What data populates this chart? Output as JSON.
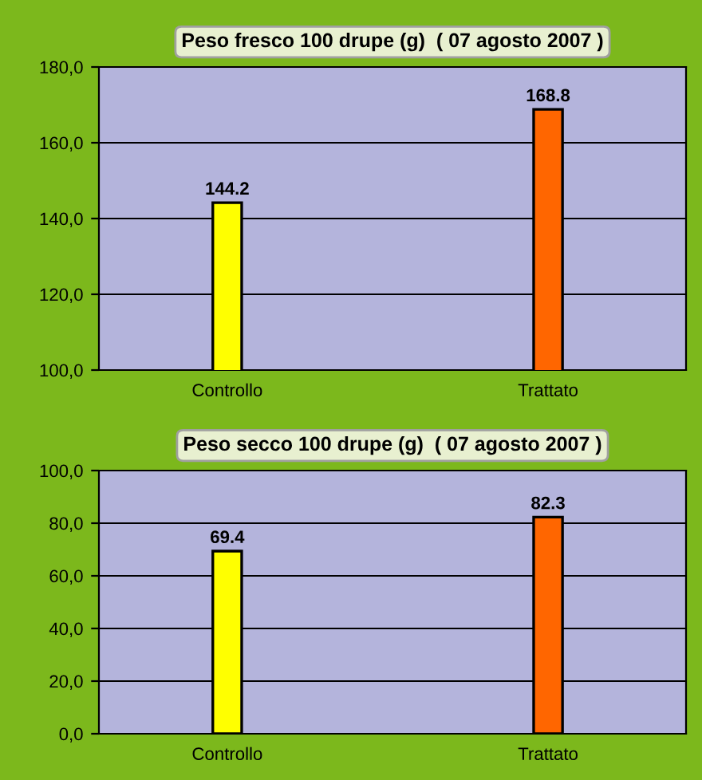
{
  "chart_data": [
    {
      "type": "bar",
      "title": "Peso fresco 100 drupe (g)  ( 07 agosto 2007 )",
      "categories": [
        "Controllo",
        "Trattato"
      ],
      "values": [
        144.2,
        168.8
      ],
      "colors": [
        "#ffff00",
        "#ff6600"
      ],
      "value_labels": [
        "144.2",
        "168.8"
      ],
      "ylim": [
        100,
        180
      ],
      "yticks": [
        {
          "value": 100,
          "label": "100,0"
        },
        {
          "value": 120,
          "label": "120,0"
        },
        {
          "value": 140,
          "label": "140,0"
        },
        {
          "value": 160,
          "label": "160,0"
        },
        {
          "value": 180,
          "label": "180,0"
        }
      ],
      "grid": "y"
    },
    {
      "type": "bar",
      "title": "Peso secco 100 drupe (g)  ( 07 agosto 2007 )",
      "categories": [
        "Controllo",
        "Trattato"
      ],
      "values": [
        69.4,
        82.3
      ],
      "colors": [
        "#ffff00",
        "#ff6600"
      ],
      "value_labels": [
        "69.4",
        "82.3"
      ],
      "ylim": [
        0,
        100
      ],
      "yticks": [
        {
          "value": 0,
          "label": "0,0"
        },
        {
          "value": 20,
          "label": "20,0"
        },
        {
          "value": 40,
          "label": "40,0"
        },
        {
          "value": 60,
          "label": "60,0"
        },
        {
          "value": 80,
          "label": "80,0"
        },
        {
          "value": 100,
          "label": "100,0"
        }
      ],
      "grid": "y"
    }
  ]
}
